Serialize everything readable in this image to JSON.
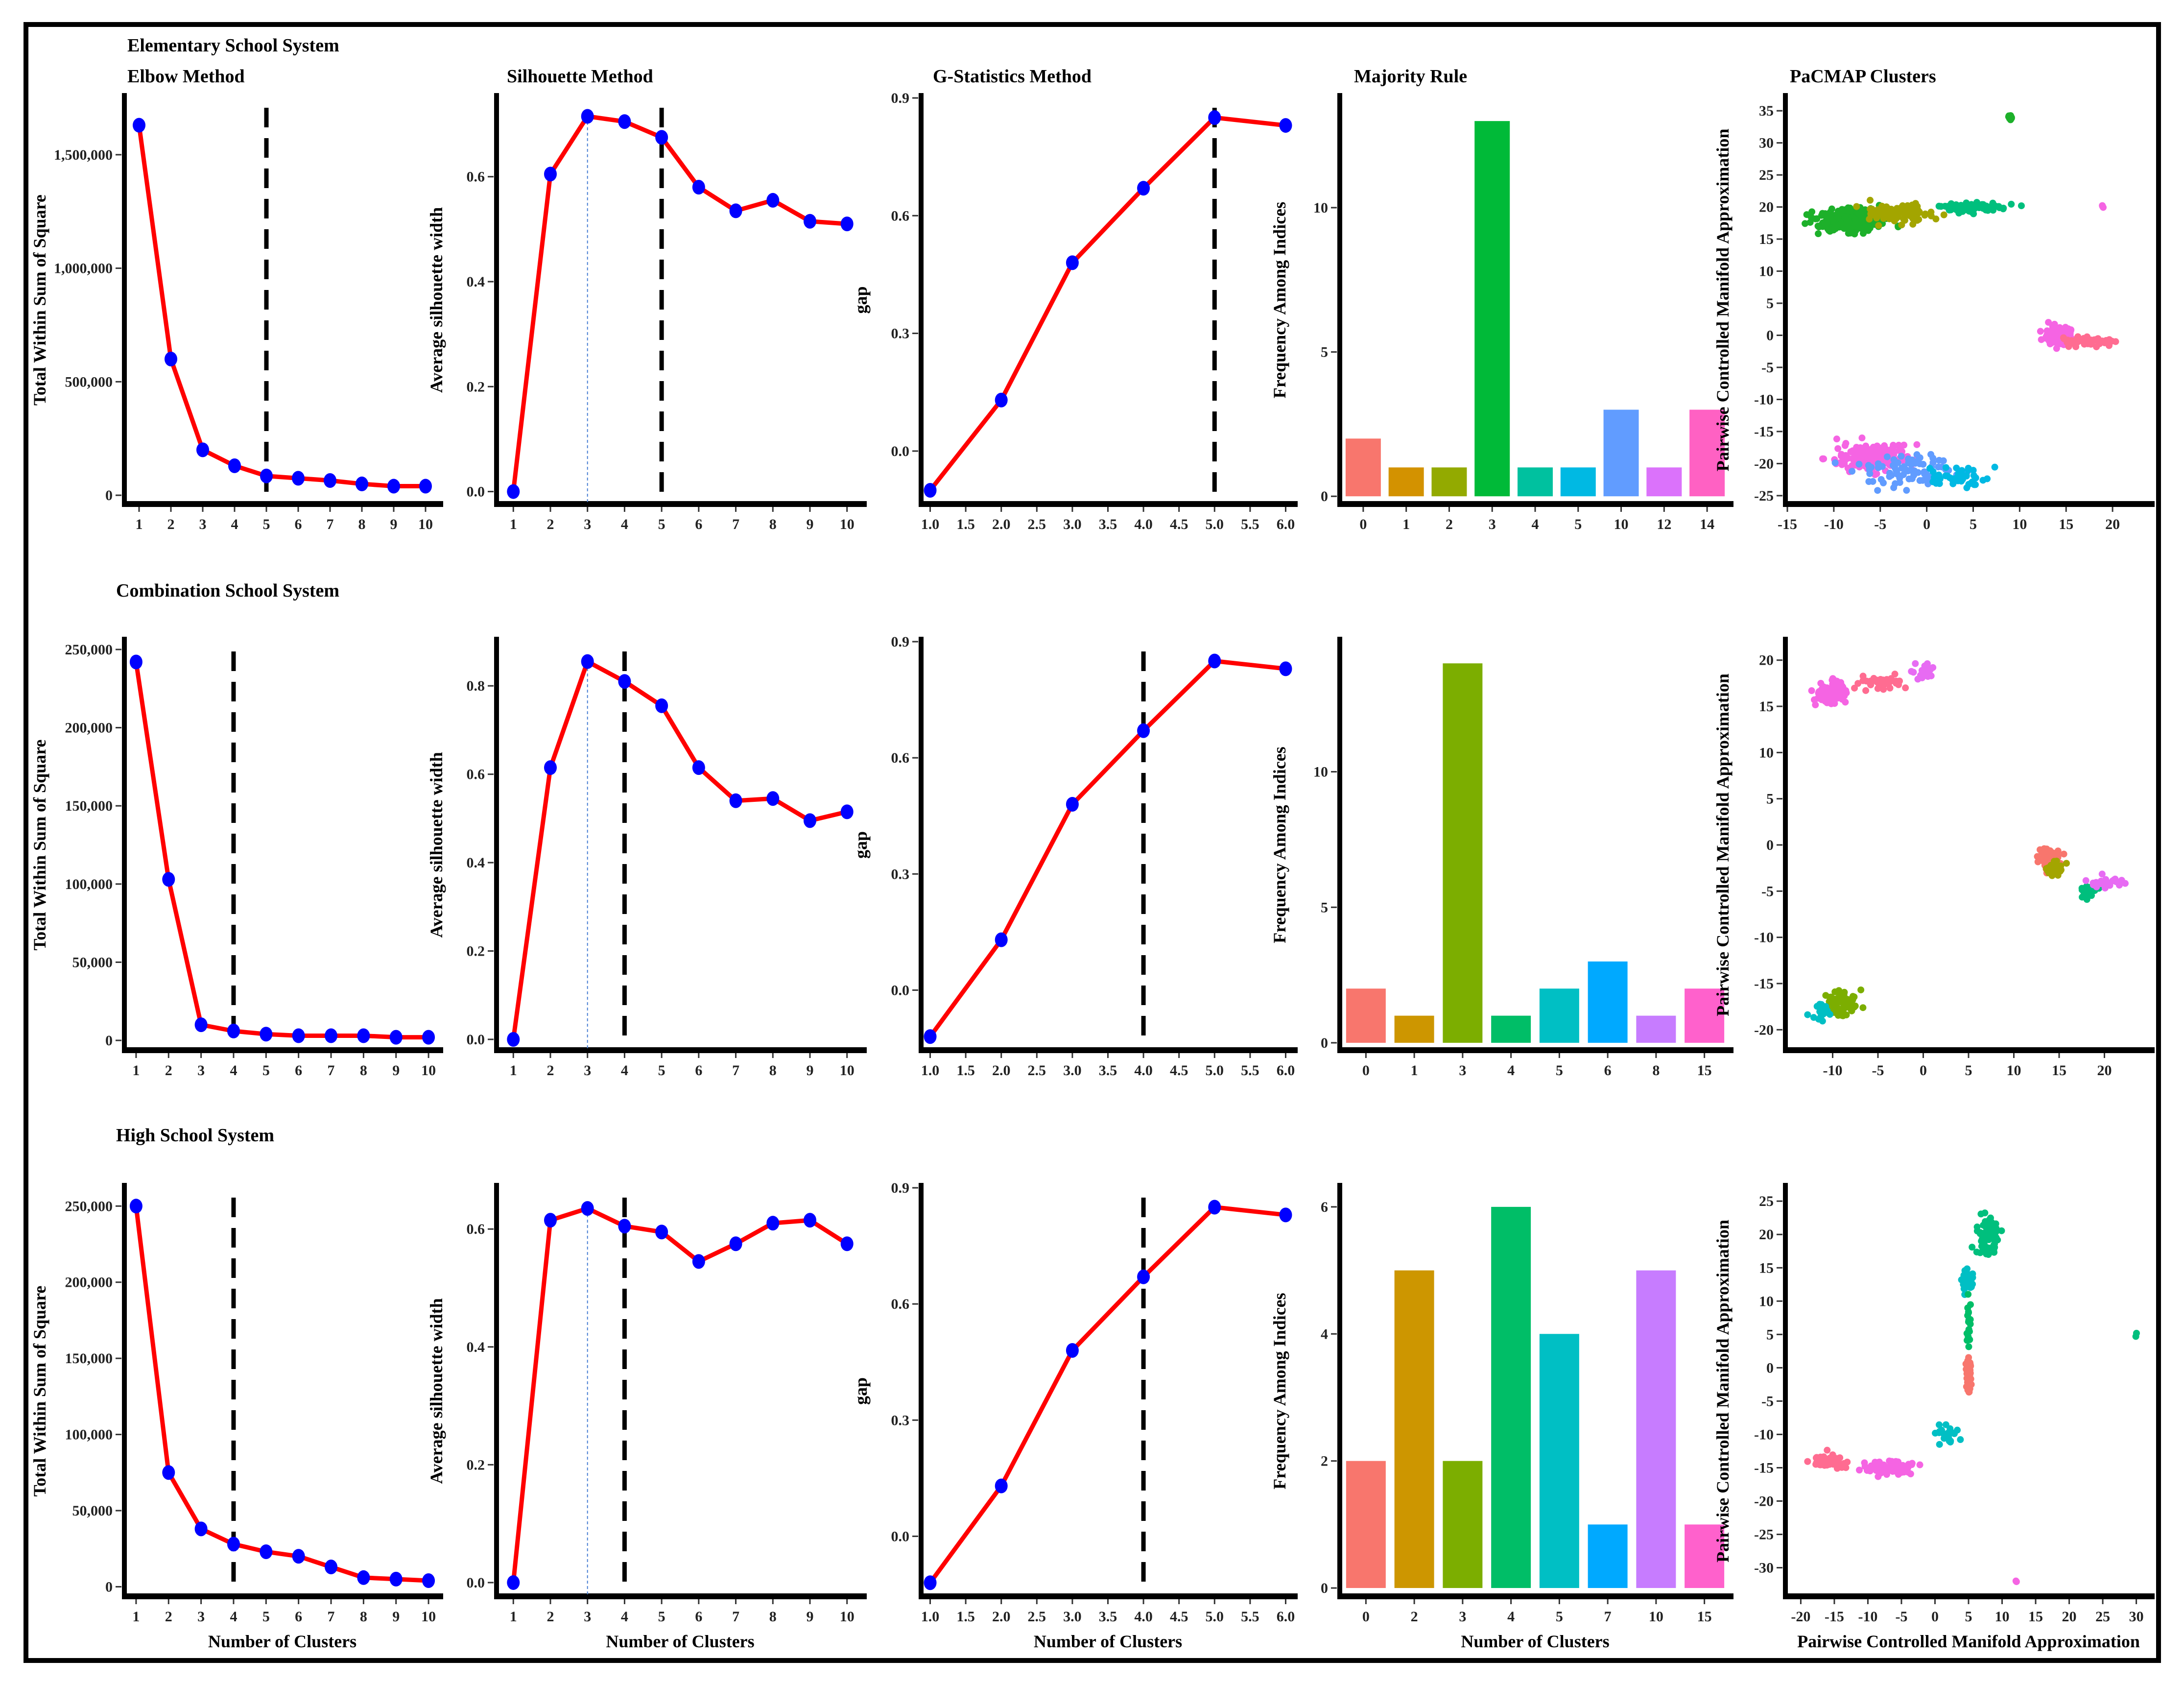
{
  "figure": {
    "row_titles": [
      "Elementary School System",
      "Combination School System",
      "High School System"
    ],
    "column_titles": [
      "Elbow Method",
      "Silhouette Method",
      "G-Statistics Method",
      "Majority Rule",
      "PaCMAP Clusters"
    ],
    "common_xlabel": "Number of Clusters",
    "pacmap_xlabel": "Pairwise Controlled Manifold Approximation",
    "colors": {
      "line": "#ff0000",
      "marker": "#0000ff",
      "vline": "#000000",
      "silhouette_ref": "#4a7fd4"
    }
  },
  "chart_data": [
    {
      "type": "line",
      "row": 0,
      "col": 0,
      "title": "Elbow Method",
      "xlabel": "",
      "ylabel": "Total Within Sum of Square",
      "x": [
        1,
        2,
        3,
        4,
        5,
        6,
        7,
        8,
        9,
        10
      ],
      "y": [
        1630000,
        600000,
        200000,
        130000,
        85000,
        75000,
        65000,
        50000,
        40000,
        40000
      ],
      "xlim": [
        0.6,
        10.4
      ],
      "ylim": [
        -30000,
        1750000
      ],
      "xticks": [
        1,
        2,
        3,
        4,
        5,
        6,
        7,
        8,
        9,
        10
      ],
      "xtick_labels": [
        "1",
        "2",
        "3",
        "4",
        "5",
        "6",
        "7",
        "8",
        "9",
        "10"
      ],
      "yticks": [
        0,
        500000,
        1000000,
        1500000
      ],
      "ytick_labels": [
        "0",
        "500,000",
        "1,000,000",
        "1,500,000"
      ],
      "vline": 5
    },
    {
      "type": "line",
      "row": 0,
      "col": 1,
      "title": "Silhouette Method",
      "xlabel": "",
      "ylabel": "Average silhouette width",
      "x": [
        1,
        2,
        3,
        4,
        5,
        6,
        7,
        8,
        9,
        10
      ],
      "y": [
        0.0,
        0.605,
        0.715,
        0.705,
        0.675,
        0.58,
        0.535,
        0.555,
        0.515,
        0.51
      ],
      "xlim": [
        0.6,
        10.4
      ],
      "ylim": [
        -0.02,
        0.75
      ],
      "xticks": [
        1,
        2,
        3,
        4,
        5,
        6,
        7,
        8,
        9,
        10
      ],
      "xtick_labels": [
        "1",
        "2",
        "3",
        "4",
        "5",
        "6",
        "7",
        "8",
        "9",
        "10"
      ],
      "yticks": [
        0,
        0.2,
        0.4,
        0.6
      ],
      "ytick_labels": [
        "0.0",
        "0.2",
        "0.4",
        "0.6"
      ],
      "vline": 5,
      "refline": 3
    },
    {
      "type": "line",
      "row": 0,
      "col": 2,
      "title": "G-Statistics Method",
      "xlabel": "",
      "ylabel": "gap",
      "x": [
        1,
        2,
        3,
        4,
        5,
        6
      ],
      "y": [
        -0.1,
        0.13,
        0.48,
        0.67,
        0.85,
        0.83
      ],
      "xlim": [
        0.9,
        6.1
      ],
      "ylim": [
        -0.13,
        0.9
      ],
      "xticks": [
        1,
        1.5,
        2,
        2.5,
        3,
        3.5,
        4,
        4.5,
        5,
        5.5,
        6
      ],
      "xtick_labels": [
        "1.0",
        "1.5",
        "2.0",
        "2.5",
        "3.0",
        "3.5",
        "4.0",
        "4.5",
        "5.0",
        "5.5",
        "6.0"
      ],
      "yticks": [
        0,
        0.3,
        0.6,
        0.9
      ],
      "ytick_labels": [
        "0.0",
        "0.3",
        "0.6",
        "0.9"
      ],
      "vline": 5
    },
    {
      "type": "bar",
      "row": 0,
      "col": 3,
      "title": "Majority Rule",
      "xlabel": "",
      "ylabel": "Frequency Among Indices",
      "categories": [
        "0",
        "1",
        "2",
        "3",
        "4",
        "5",
        "10",
        "12",
        "14"
      ],
      "values": [
        2,
        1,
        1,
        13,
        1,
        1,
        3,
        1,
        3
      ],
      "bar_colors": [
        "#f8766d",
        "#d39200",
        "#93aa00",
        "#00ba38",
        "#00c19f",
        "#00b9e3",
        "#619cff",
        "#db72fb",
        "#ff61c3"
      ],
      "ylim": [
        -0.2,
        13.8
      ],
      "yticks": [
        0,
        5,
        10
      ],
      "ytick_labels": [
        "0",
        "5",
        "10"
      ]
    },
    {
      "type": "scatter",
      "row": 0,
      "col": 4,
      "title": "PaCMAP Clusters",
      "xlabel": "",
      "ylabel": "Pairwise Controlled Manifold Approximation",
      "xlim": [
        -15,
        24
      ],
      "ylim": [
        -26,
        37
      ],
      "xticks": [
        -15,
        -10,
        -5,
        0,
        5,
        10,
        15,
        20
      ],
      "xtick_labels": [
        "-15",
        "-10",
        "-5",
        "0",
        "5",
        "10",
        "15",
        "20"
      ],
      "yticks": [
        -25,
        -20,
        -15,
        -10,
        -5,
        0,
        5,
        10,
        15,
        20,
        25,
        30,
        35
      ],
      "ytick_labels": [
        "-25",
        "-20",
        "-15",
        "-10",
        "-5",
        "0",
        "5",
        "10",
        "15",
        "20",
        "25",
        "30",
        "35"
      ],
      "clusters": [
        {
          "color": "#1db02a",
          "cx": -8,
          "cy": 18,
          "sx": 3.2,
          "sy": 1.6,
          "n": 260
        },
        {
          "color": "#a3a500",
          "cx": -3,
          "cy": 19,
          "sx": 3.5,
          "sy": 1.3,
          "n": 110
        },
        {
          "color": "#00bf7d",
          "cx": 5,
          "cy": 20,
          "sx": 3,
          "sy": 0.7,
          "n": 60
        },
        {
          "color": "#f564e3",
          "cx": 14,
          "cy": 0,
          "sx": 1.2,
          "sy": 1.3,
          "n": 140
        },
        {
          "color": "#ff6c91",
          "cx": 17,
          "cy": -1,
          "sx": 2.5,
          "sy": 0.6,
          "n": 60
        },
        {
          "color": "#f564e3",
          "cx": -6,
          "cy": -19,
          "sx": 3.5,
          "sy": 1.8,
          "n": 170
        },
        {
          "color": "#619cff",
          "cx": -2,
          "cy": -21,
          "sx": 4.5,
          "sy": 2,
          "n": 80
        },
        {
          "color": "#00b9e3",
          "cx": 3,
          "cy": -22,
          "sx": 3,
          "sy": 1.2,
          "n": 40
        },
        {
          "color": "#1db02a",
          "cx": 9,
          "cy": 34,
          "sx": 0.3,
          "sy": 0.4,
          "n": 12
        },
        {
          "color": "#f564e3",
          "cx": 19,
          "cy": 20,
          "sx": 0.1,
          "sy": 0.2,
          "n": 3
        }
      ]
    },
    {
      "type": "line",
      "row": 1,
      "col": 0,
      "title": "",
      "xlabel": "",
      "ylabel": "Total Within Sum of Square",
      "x": [
        1,
        2,
        3,
        4,
        5,
        6,
        7,
        8,
        9,
        10
      ],
      "y": [
        242000,
        103000,
        10000,
        6000,
        4000,
        3000,
        3000,
        3000,
        2000,
        2000
      ],
      "xlim": [
        0.7,
        10.3
      ],
      "ylim": [
        -5000,
        255000
      ],
      "xticks": [
        1,
        2,
        3,
        4,
        5,
        6,
        7,
        8,
        9,
        10
      ],
      "xtick_labels": [
        "1",
        "2",
        "3",
        "4",
        "5",
        "6",
        "7",
        "8",
        "9",
        "10"
      ],
      "yticks": [
        0,
        50000,
        100000,
        150000,
        200000,
        250000
      ],
      "ytick_labels": [
        "0",
        "50,000",
        "100,000",
        "150,000",
        "200,000",
        "250,000"
      ],
      "vline": 4
    },
    {
      "type": "line",
      "row": 1,
      "col": 1,
      "title": "",
      "xlabel": "",
      "ylabel": "Average silhouette width",
      "x": [
        1,
        2,
        3,
        4,
        5,
        6,
        7,
        8,
        9,
        10
      ],
      "y": [
        0.0,
        0.615,
        0.855,
        0.81,
        0.755,
        0.615,
        0.54,
        0.545,
        0.495,
        0.515
      ],
      "xlim": [
        0.6,
        10.4
      ],
      "ylim": [
        -0.02,
        0.9
      ],
      "xticks": [
        1,
        2,
        3,
        4,
        5,
        6,
        7,
        8,
        9,
        10
      ],
      "xtick_labels": [
        "1",
        "2",
        "3",
        "4",
        "5",
        "6",
        "7",
        "8",
        "9",
        "10"
      ],
      "yticks": [
        0,
        0.2,
        0.4,
        0.6,
        0.8
      ],
      "ytick_labels": [
        "0.0",
        "0.2",
        "0.4",
        "0.6",
        "0.8"
      ],
      "vline": 4,
      "refline": 3
    },
    {
      "type": "line",
      "row": 1,
      "col": 2,
      "title": "",
      "xlabel": "",
      "ylabel": "gap",
      "x": [
        1,
        2,
        3,
        4,
        5,
        6
      ],
      "y": [
        -0.12,
        0.13,
        0.48,
        0.67,
        0.85,
        0.83
      ],
      "xlim": [
        0.9,
        6.1
      ],
      "ylim": [
        -0.15,
        0.9
      ],
      "xticks": [
        1,
        1.5,
        2,
        2.5,
        3,
        3.5,
        4,
        4.5,
        5,
        5.5,
        6
      ],
      "xtick_labels": [
        "1.0",
        "1.5",
        "2.0",
        "2.5",
        "3.0",
        "3.5",
        "4.0",
        "4.5",
        "5.0",
        "5.5",
        "6.0"
      ],
      "yticks": [
        0,
        0.3,
        0.6,
        0.9
      ],
      "ytick_labels": [
        "0.0",
        "0.3",
        "0.6",
        "0.9"
      ],
      "vline": 4
    },
    {
      "type": "bar",
      "row": 1,
      "col": 3,
      "title": "",
      "xlabel": "",
      "ylabel": "Frequency Among Indices",
      "categories": [
        "0",
        "1",
        "3",
        "4",
        "5",
        "6",
        "8",
        "15"
      ],
      "values": [
        2,
        1,
        14,
        1,
        2,
        3,
        1,
        2
      ],
      "bar_colors": [
        "#f8766d",
        "#cd9600",
        "#7cae00",
        "#00be67",
        "#00bfc4",
        "#00a9ff",
        "#c77cff",
        "#ff61cc"
      ],
      "ylim": [
        -0.2,
        14.8
      ],
      "yticks": [
        0,
        5,
        10
      ],
      "ytick_labels": [
        "0",
        "5",
        "10"
      ]
    },
    {
      "type": "scatter",
      "row": 1,
      "col": 4,
      "title": "",
      "xlabel": "",
      "ylabel": "Pairwise Controlled Manifold Approximation",
      "xlim": [
        -15,
        25
      ],
      "ylim": [
        -22,
        22
      ],
      "xticks": [
        -10,
        -5,
        0,
        5,
        10,
        15,
        20
      ],
      "xtick_labels": [
        "-10",
        "-5",
        "0",
        "5",
        "10",
        "15",
        "20"
      ],
      "yticks": [
        -20,
        -15,
        -10,
        -5,
        0,
        5,
        10,
        15,
        20
      ],
      "ytick_labels": [
        "-20",
        "-15",
        "-10",
        "-5",
        "0",
        "5",
        "10",
        "15",
        "20"
      ],
      "clusters": [
        {
          "color": "#f564e3",
          "cx": -10,
          "cy": 16.5,
          "sx": 1.5,
          "sy": 1,
          "n": 70
        },
        {
          "color": "#ff6c91",
          "cx": -5,
          "cy": 17.5,
          "sx": 2.5,
          "sy": 0.6,
          "n": 40
        },
        {
          "color": "#e76bf3",
          "cx": 0,
          "cy": 18.5,
          "sx": 1,
          "sy": 0.8,
          "n": 20
        },
        {
          "color": "#f8766d",
          "cx": 14,
          "cy": -1.5,
          "sx": 1,
          "sy": 1,
          "n": 60
        },
        {
          "color": "#a3a500",
          "cx": 14.5,
          "cy": -2.5,
          "sx": 0.8,
          "sy": 0.8,
          "n": 30
        },
        {
          "color": "#00bf7d",
          "cx": 18,
          "cy": -5,
          "sx": 1,
          "sy": 0.7,
          "n": 20
        },
        {
          "color": "#e76bf3",
          "cx": 20,
          "cy": -4,
          "sx": 1.5,
          "sy": 0.5,
          "n": 30
        },
        {
          "color": "#7cae00",
          "cx": -9,
          "cy": -17,
          "sx": 1.5,
          "sy": 1.3,
          "n": 80
        },
        {
          "color": "#00bfc4",
          "cx": -11,
          "cy": -18,
          "sx": 1,
          "sy": 0.8,
          "n": 20
        }
      ]
    },
    {
      "type": "line",
      "row": 2,
      "col": 0,
      "title": "",
      "xlabel": "Number of Clusters",
      "ylabel": "Total Within Sum of Square",
      "x": [
        1,
        2,
        3,
        4,
        5,
        6,
        7,
        8,
        9,
        10
      ],
      "y": [
        250000,
        75000,
        38000,
        28000,
        23000,
        20000,
        13000,
        6000,
        5000,
        4000
      ],
      "xlim": [
        0.7,
        10.3
      ],
      "ylim": [
        -5000,
        262000
      ],
      "xticks": [
        1,
        2,
        3,
        4,
        5,
        6,
        7,
        8,
        9,
        10
      ],
      "xtick_labels": [
        "1",
        "2",
        "3",
        "4",
        "5",
        "6",
        "7",
        "8",
        "9",
        "10"
      ],
      "yticks": [
        0,
        50000,
        100000,
        150000,
        200000,
        250000
      ],
      "ytick_labels": [
        "0",
        "50,000",
        "100,000",
        "150,000",
        "200,000",
        "250,000"
      ],
      "vline": 4
    },
    {
      "type": "line",
      "row": 2,
      "col": 1,
      "title": "",
      "xlabel": "Number of Clusters",
      "ylabel": "Average silhouette width",
      "x": [
        1,
        2,
        3,
        4,
        5,
        6,
        7,
        8,
        9,
        10
      ],
      "y": [
        0.0,
        0.615,
        0.635,
        0.605,
        0.595,
        0.545,
        0.575,
        0.61,
        0.615,
        0.575
      ],
      "xlim": [
        0.6,
        10.4
      ],
      "ylim": [
        -0.02,
        0.67
      ],
      "xticks": [
        1,
        2,
        3,
        4,
        5,
        6,
        7,
        8,
        9,
        10
      ],
      "xtick_labels": [
        "1",
        "2",
        "3",
        "4",
        "5",
        "6",
        "7",
        "8",
        "9",
        "10"
      ],
      "yticks": [
        0,
        0.2,
        0.4,
        0.6
      ],
      "ytick_labels": [
        "0.0",
        "0.2",
        "0.4",
        "0.6"
      ],
      "vline": 4,
      "refline": 3
    },
    {
      "type": "line",
      "row": 2,
      "col": 2,
      "title": "",
      "xlabel": "Number of Clusters",
      "ylabel": "gap",
      "x": [
        1,
        2,
        3,
        4,
        5,
        6
      ],
      "y": [
        -0.12,
        0.13,
        0.48,
        0.67,
        0.85,
        0.83
      ],
      "xlim": [
        0.9,
        6.1
      ],
      "ylim": [
        -0.15,
        0.9
      ],
      "xticks": [
        1,
        1.5,
        2,
        2.5,
        3,
        3.5,
        4,
        4.5,
        5,
        5.5,
        6
      ],
      "xtick_labels": [
        "1.0",
        "1.5",
        "2.0",
        "2.5",
        "3.0",
        "3.5",
        "4.0",
        "4.5",
        "5.0",
        "5.5",
        "6.0"
      ],
      "yticks": [
        0,
        0.3,
        0.6,
        0.9
      ],
      "ytick_labels": [
        "0.0",
        "0.3",
        "0.6",
        "0.9"
      ],
      "vline": 4
    },
    {
      "type": "bar",
      "row": 2,
      "col": 3,
      "title": "",
      "xlabel": "Number of Clusters",
      "ylabel": "Frequency Among Indices",
      "categories": [
        "0",
        "2",
        "3",
        "4",
        "5",
        "7",
        "10",
        "15"
      ],
      "values": [
        2,
        5,
        2,
        6,
        4,
        1,
        5,
        1
      ],
      "bar_colors": [
        "#f8766d",
        "#cd9600",
        "#7cae00",
        "#00be67",
        "#00bfc4",
        "#00a9ff",
        "#c77cff",
        "#ff61cc"
      ],
      "ylim": [
        -0.1,
        6.3
      ],
      "yticks": [
        0,
        2,
        4,
        6
      ],
      "ytick_labels": [
        "0",
        "2",
        "4",
        "6"
      ]
    },
    {
      "type": "scatter",
      "row": 2,
      "col": 4,
      "title": "",
      "xlabel": "Pairwise Controlled Manifold Approximation",
      "ylabel": "Pairwise Controlled Manifold Approximation",
      "xlim": [
        -22,
        32
      ],
      "ylim": [
        -34,
        27
      ],
      "xticks": [
        -20,
        -15,
        -10,
        -5,
        0,
        5,
        10,
        15,
        20,
        25,
        30
      ],
      "xtick_labels": [
        "-20",
        "-15",
        "-10",
        "-5",
        "0",
        "5",
        "10",
        "15",
        "20",
        "25",
        "30"
      ],
      "yticks": [
        -30,
        -25,
        -20,
        -15,
        -10,
        -5,
        0,
        5,
        10,
        15,
        20,
        25
      ],
      "ytick_labels": [
        "-30",
        "-25",
        "-20",
        "-15",
        "-10",
        "-5",
        "0",
        "5",
        "10",
        "15",
        "20",
        "25"
      ],
      "clusters": [
        {
          "color": "#00bf7d",
          "cx": 8,
          "cy": 20,
          "sx": 1.5,
          "sy": 2.5,
          "n": 70
        },
        {
          "color": "#00bfc4",
          "cx": 5,
          "cy": 13,
          "sx": 0.8,
          "sy": 1.5,
          "n": 30
        },
        {
          "color": "#00be67",
          "cx": 5,
          "cy": 7,
          "sx": 0.4,
          "sy": 2.5,
          "n": 20
        },
        {
          "color": "#f8766d",
          "cx": 5,
          "cy": -1,
          "sx": 0.4,
          "sy": 2.5,
          "n": 40
        },
        {
          "color": "#00bfc4",
          "cx": 2,
          "cy": -10,
          "sx": 1.5,
          "sy": 1.5,
          "n": 20
        },
        {
          "color": "#f564e3",
          "cx": -7,
          "cy": -15,
          "sx": 3.5,
          "sy": 0.9,
          "n": 70
        },
        {
          "color": "#ff6c91",
          "cx": -16,
          "cy": -14,
          "sx": 2,
          "sy": 1,
          "n": 40
        },
        {
          "color": "#00bf7d",
          "cx": 30,
          "cy": 5,
          "sx": 0.1,
          "sy": 0.2,
          "n": 2
        },
        {
          "color": "#f564e3",
          "cx": 12,
          "cy": -32,
          "sx": 0.1,
          "sy": 0.1,
          "n": 2
        }
      ]
    }
  ]
}
